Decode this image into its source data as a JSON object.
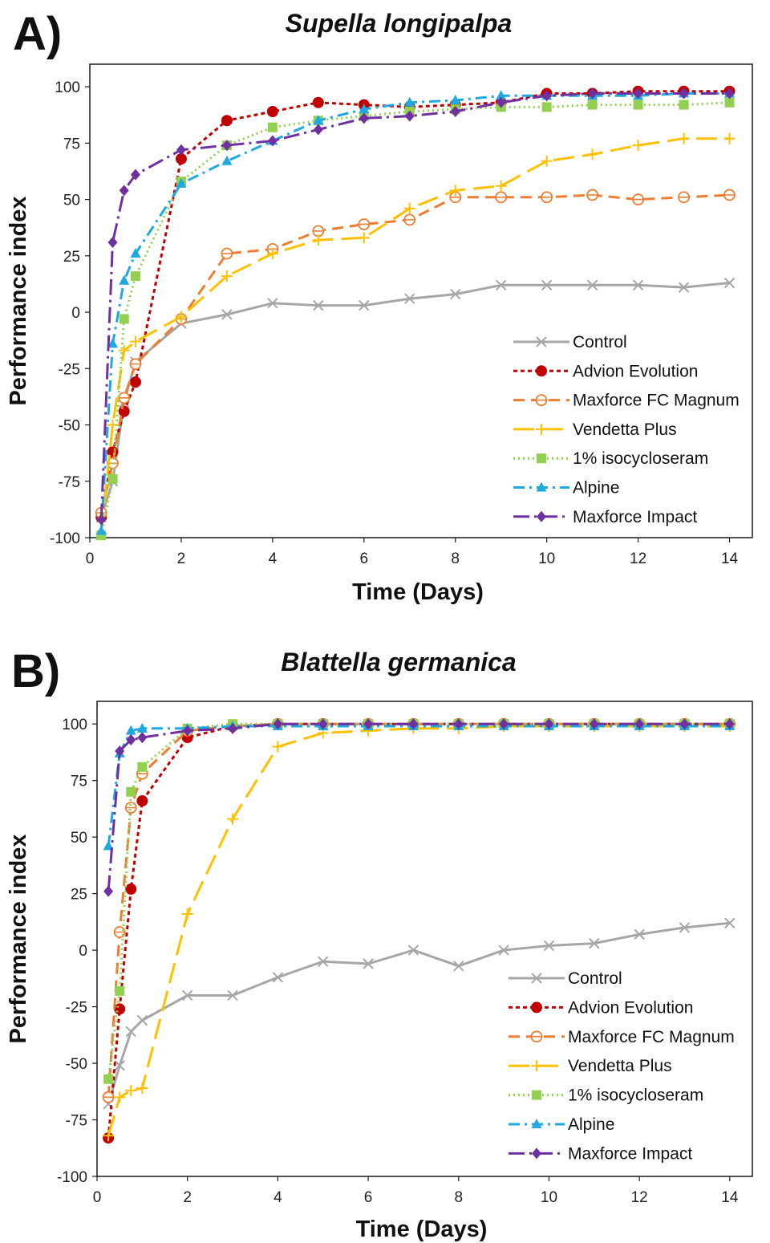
{
  "chart_data": [
    {
      "panel_label": "A)",
      "title": "Supella longipalpa",
      "type": "line",
      "xlabel": "Time (Days)",
      "ylabel": "Performance index",
      "xlim": [
        0,
        14.5
      ],
      "ylim": [
        -100,
        110
      ],
      "x_ticks": [
        0,
        2,
        4,
        6,
        8,
        10,
        12,
        14
      ],
      "y_ticks": [
        -100,
        -75,
        -50,
        -25,
        0,
        25,
        50,
        75,
        100
      ],
      "grid": false,
      "legend_position": "bottom-right",
      "series": [
        {
          "name": "Control",
          "color": "#a6a6a6",
          "marker": "x",
          "dash": "solid",
          "x": [
            0.25,
            0.5,
            0.75,
            1,
            2,
            3,
            4,
            5,
            6,
            7,
            8,
            9,
            10,
            11,
            12,
            13,
            14
          ],
          "y": [
            -91,
            -75,
            -40,
            -22,
            -5,
            -1,
            4,
            3,
            3,
            6,
            8,
            12,
            12,
            12,
            12,
            11,
            13
          ]
        },
        {
          "name": "Advion Evolution",
          "color": "#c00000",
          "marker": "circle",
          "dash": "short",
          "x": [
            0.25,
            0.5,
            0.75,
            1,
            2,
            3,
            4,
            5,
            6,
            7,
            8,
            9,
            10,
            11,
            12,
            13,
            14
          ],
          "y": [
            -91,
            -62,
            -44,
            -31,
            68,
            85,
            89,
            93,
            92,
            91,
            92,
            93,
            97,
            97,
            98,
            98,
            98
          ]
        },
        {
          "name": "Maxforce FC Magnum",
          "color": "#ed7d31",
          "marker": "circle-open-bar",
          "dash": "long",
          "x": [
            0.25,
            0.5,
            0.75,
            1,
            2,
            3,
            4,
            5,
            6,
            7,
            8,
            9,
            10,
            11,
            12,
            13,
            14
          ],
          "y": [
            -89,
            -67,
            -38,
            -23,
            -3,
            26,
            28,
            36,
            39,
            41,
            51,
            51,
            51,
            52,
            50,
            51,
            52
          ]
        },
        {
          "name": "Vendetta Plus",
          "color": "#ffc000",
          "marker": "plus",
          "dash": "longlong",
          "x": [
            0.25,
            0.5,
            0.75,
            1,
            2,
            3,
            4,
            5,
            6,
            7,
            8,
            9,
            10,
            11,
            12,
            13,
            14
          ],
          "y": [
            -98,
            -50,
            -17,
            -13,
            -2,
            16,
            26,
            32,
            33,
            46,
            54,
            56,
            67,
            70,
            74,
            77,
            77
          ]
        },
        {
          "name": "1% isocycloseram",
          "color": "#92d050",
          "marker": "square",
          "dash": "dot",
          "x": [
            0.25,
            0.5,
            0.75,
            1,
            2,
            3,
            4,
            5,
            6,
            7,
            8,
            9,
            10,
            11,
            12,
            13,
            14
          ],
          "y": [
            -99,
            -74,
            -3,
            16,
            58,
            74,
            82,
            85,
            87,
            89,
            90,
            91,
            91,
            92,
            92,
            92,
            93
          ]
        },
        {
          "name": "Alpine",
          "color": "#1fa9e1",
          "marker": "triangle",
          "dash": "dashdot",
          "x": [
            0.25,
            0.5,
            0.75,
            1,
            2,
            3,
            4,
            5,
            6,
            7,
            8,
            9,
            10,
            11,
            12,
            13,
            14
          ],
          "y": [
            -97,
            -14,
            14,
            26,
            57,
            67,
            76,
            85,
            90,
            93,
            94,
            96,
            96,
            96,
            96,
            97,
            97
          ]
        },
        {
          "name": "Maxforce Impact",
          "color": "#7030a0",
          "marker": "diamond",
          "dash": "dashdotlong",
          "x": [
            0.25,
            0.5,
            0.75,
            1,
            2,
            3,
            4,
            5,
            6,
            7,
            8,
            9,
            10,
            11,
            12,
            13,
            14
          ],
          "y": [
            -92,
            31,
            54,
            61,
            72,
            74,
            76,
            81,
            86,
            87,
            89,
            93,
            96,
            97,
            97,
            97,
            97
          ]
        }
      ]
    },
    {
      "panel_label": "B)",
      "title": "Blattella germanica",
      "type": "line",
      "xlabel": "Time (Days)",
      "ylabel": "Performance index",
      "xlim": [
        0,
        14.5
      ],
      "ylim": [
        -100,
        110
      ],
      "x_ticks": [
        0,
        2,
        4,
        6,
        8,
        10,
        12,
        14
      ],
      "y_ticks": [
        -100,
        -75,
        -50,
        -25,
        0,
        25,
        50,
        75,
        100
      ],
      "grid": false,
      "legend_position": "bottom-right",
      "series": [
        {
          "name": "Control",
          "color": "#a6a6a6",
          "marker": "x",
          "dash": "solid",
          "x": [
            0.25,
            0.5,
            0.75,
            1,
            2,
            3,
            4,
            5,
            6,
            7,
            8,
            9,
            10,
            11,
            12,
            13,
            14
          ],
          "y": [
            -68,
            -51,
            -36,
            -31,
            -20,
            -20,
            -12,
            -5,
            -6,
            0,
            -7,
            0,
            2,
            3,
            7,
            10,
            12
          ]
        },
        {
          "name": "Advion Evolution",
          "color": "#c00000",
          "marker": "circle",
          "dash": "short",
          "x": [
            0.25,
            0.5,
            0.75,
            1,
            2,
            3,
            4,
            5,
            6,
            7,
            8,
            9,
            10,
            11,
            12,
            13,
            14
          ],
          "y": [
            -83,
            -26,
            27,
            66,
            94,
            99,
            100,
            100,
            100,
            100,
            100,
            100,
            100,
            100,
            100,
            100,
            100
          ]
        },
        {
          "name": "Maxforce FC Magnum",
          "color": "#ed7d31",
          "marker": "circle-open-bar",
          "dash": "long",
          "x": [
            0.25,
            0.5,
            0.75,
            1,
            2,
            3,
            4,
            5,
            6,
            7,
            8,
            9,
            10,
            11,
            12,
            13,
            14
          ],
          "y": [
            -65,
            8,
            63,
            78,
            97,
            99,
            100,
            100,
            100,
            100,
            100,
            100,
            100,
            100,
            100,
            100,
            100
          ]
        },
        {
          "name": "Vendetta Plus",
          "color": "#ffc000",
          "marker": "plus",
          "dash": "longlong",
          "x": [
            0.25,
            0.5,
            0.75,
            1,
            2,
            3,
            4,
            5,
            6,
            7,
            8,
            9,
            10,
            11,
            12,
            13,
            14
          ],
          "y": [
            -82,
            -65,
            -62,
            -61,
            16,
            58,
            90,
            96,
            97,
            98,
            98,
            99,
            99,
            99,
            99,
            99,
            99
          ]
        },
        {
          "name": "1% isocycloseram",
          "color": "#92d050",
          "marker": "square",
          "dash": "dot",
          "x": [
            0.25,
            0.5,
            0.75,
            1,
            2,
            3,
            4,
            5,
            6,
            7,
            8,
            9,
            10,
            11,
            12,
            13,
            14
          ],
          "y": [
            -57,
            -18,
            70,
            81,
            98,
            100,
            100,
            100,
            100,
            100,
            100,
            100,
            100,
            100,
            100,
            100,
            100
          ]
        },
        {
          "name": "Alpine",
          "color": "#1fa9e1",
          "marker": "triangle",
          "dash": "dashdot",
          "x": [
            0.25,
            0.5,
            0.75,
            1,
            2,
            3,
            4,
            5,
            6,
            7,
            8,
            9,
            10,
            11,
            12,
            13,
            14
          ],
          "y": [
            46,
            87,
            97,
            98,
            98,
            99,
            99,
            99,
            99,
            99,
            99,
            99,
            99,
            99,
            99,
            99,
            99
          ]
        },
        {
          "name": "Maxforce Impact",
          "color": "#7030a0",
          "marker": "diamond",
          "dash": "dashdotlong",
          "x": [
            0.25,
            0.5,
            0.75,
            1,
            2,
            3,
            4,
            5,
            6,
            7,
            8,
            9,
            10,
            11,
            12,
            13,
            14
          ],
          "y": [
            26,
            88,
            93,
            94,
            97,
            98,
            100,
            100,
            100,
            100,
            100,
            100,
            100,
            100,
            100,
            100,
            100
          ]
        }
      ]
    }
  ]
}
